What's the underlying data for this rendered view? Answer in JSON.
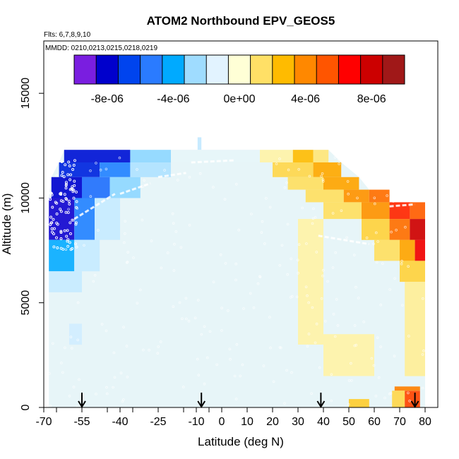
{
  "chart_data": {
    "type": "heatmap",
    "title": "ATOM2 Northbound EPV_GEOS5",
    "subtitle_flights": "Flts: 6,7,8,9,10",
    "subtitle_dates": "MMDD: 0210,0213,0215,0218,0219",
    "xlabel": "Latitude (deg N)",
    "ylabel": "Altitude (m)",
    "xlim": [
      -70,
      85
    ],
    "ylim": [
      0,
      17500
    ],
    "x_ticks": [
      {
        "value": -70,
        "label": "-70"
      },
      {
        "value": -55,
        "label": "-55"
      },
      {
        "value": -40,
        "label": "-40"
      },
      {
        "value": -25,
        "label": "-25"
      },
      {
        "value": -10,
        "label": "-10"
      },
      {
        "value": 0,
        "label": "0"
      },
      {
        "value": 10,
        "label": "10"
      },
      {
        "value": 20,
        "label": "20"
      },
      {
        "value": 30,
        "label": "30"
      },
      {
        "value": 40,
        "label": "40"
      },
      {
        "value": 50,
        "label": "50"
      },
      {
        "value": 60,
        "label": "60"
      },
      {
        "value": 70,
        "label": "70"
      },
      {
        "value": 80,
        "label": "80"
      }
    ],
    "y_ticks": [
      {
        "value": 0,
        "label": "0"
      },
      {
        "value": 5000,
        "label": "5000"
      },
      {
        "value": 10000,
        "label": "10000"
      },
      {
        "value": 15000,
        "label": "15000"
      }
    ],
    "colorbar": {
      "min": -1e-05,
      "max": 1e-05,
      "colors": [
        "#7a1ee0",
        "#0000cc",
        "#0044ee",
        "#2a7bff",
        "#00aaff",
        "#9fdcff",
        "#e2f3ff",
        "#ffffd6",
        "#ffe066",
        "#ffbb00",
        "#ff8800",
        "#ff5500",
        "#ff0000",
        "#cc0000",
        "#a01818"
      ],
      "ticks": [
        {
          "value": -8e-06,
          "label": "-8e-06"
        },
        {
          "value": -4e-06,
          "label": "-4e-06"
        },
        {
          "value": 0,
          "label": "0e+00"
        },
        {
          "value": 4e-06,
          "label": "4e-06"
        },
        {
          "value": 8e-06,
          "label": "8e-06"
        }
      ]
    },
    "arrow_latitudes": [
      -55,
      -8,
      39,
      76
    ],
    "field_cells": [
      {
        "lat": [
          -62,
          -36
        ],
        "alt": [
          11700,
          12300
        ],
        "value": -8.2e-06
      },
      {
        "lat": [
          -36,
          -20
        ],
        "alt": [
          11700,
          12300
        ],
        "value": -3e-06
      },
      {
        "lat": [
          -64,
          -48
        ],
        "alt": [
          11000,
          11700
        ],
        "value": -7.8e-06
      },
      {
        "lat": [
          -48,
          -36
        ],
        "alt": [
          11000,
          11700
        ],
        "value": -5.5e-06
      },
      {
        "lat": [
          -36,
          -20
        ],
        "alt": [
          11000,
          11700
        ],
        "value": -2.5e-06
      },
      {
        "lat": [
          -67,
          -55
        ],
        "alt": [
          10000,
          11000
        ],
        "value": -8.5e-06
      },
      {
        "lat": [
          -55,
          -44
        ],
        "alt": [
          10000,
          11000
        ],
        "value": -6e-06
      },
      {
        "lat": [
          -44,
          -32
        ],
        "alt": [
          10000,
          11000
        ],
        "value": -3e-06
      },
      {
        "lat": [
          -68,
          -58
        ],
        "alt": [
          8000,
          10000
        ],
        "value": -8.8e-06
      },
      {
        "lat": [
          -58,
          -50
        ],
        "alt": [
          8000,
          10000
        ],
        "value": -5.5e-06
      },
      {
        "lat": [
          -50,
          -40
        ],
        "alt": [
          8000,
          10000
        ],
        "value": -2e-06
      },
      {
        "lat": [
          -68,
          -58
        ],
        "alt": [
          6500,
          8000
        ],
        "value": -4.2e-06
      },
      {
        "lat": [
          -58,
          -48
        ],
        "alt": [
          6500,
          8000
        ],
        "value": -2e-06
      },
      {
        "lat": [
          -68,
          -55
        ],
        "alt": [
          5500,
          6500
        ],
        "value": -2e-06
      },
      {
        "lat": [
          -60,
          -55
        ],
        "alt": [
          3000,
          4000
        ],
        "value": -1.8e-06
      },
      {
        "lat": [
          -20,
          15
        ],
        "alt": [
          11700,
          12300
        ],
        "value": -1.2e-06
      },
      {
        "lat": [
          15,
          28
        ],
        "alt": [
          11700,
          12300
        ],
        "value": 6e-07
      },
      {
        "lat": [
          28,
          36
        ],
        "alt": [
          11700,
          12300
        ],
        "value": 2.8e-06
      },
      {
        "lat": [
          36,
          42
        ],
        "alt": [
          11700,
          12300
        ],
        "value": 1.2e-06
      },
      {
        "lat": [
          20,
          36
        ],
        "alt": [
          11000,
          11700
        ],
        "value": 1.8e-06
      },
      {
        "lat": [
          36,
          47
        ],
        "alt": [
          11000,
          11700
        ],
        "value": 3.4e-06
      },
      {
        "lat": [
          26,
          40
        ],
        "alt": [
          10400,
          11000
        ],
        "value": 1.5e-06
      },
      {
        "lat": [
          40,
          54
        ],
        "alt": [
          10400,
          11000
        ],
        "value": 3.5e-06
      },
      {
        "lat": [
          33,
          48
        ],
        "alt": [
          9800,
          10400
        ],
        "value": 1.5e-06
      },
      {
        "lat": [
          48,
          58
        ],
        "alt": [
          9800,
          10400
        ],
        "value": 4e-06
      },
      {
        "lat": [
          58,
          66
        ],
        "alt": [
          9800,
          10400
        ],
        "value": 5e-06
      },
      {
        "lat": [
          40,
          55
        ],
        "alt": [
          9000,
          9800
        ],
        "value": 1.5e-06
      },
      {
        "lat": [
          55,
          66
        ],
        "alt": [
          9000,
          9800
        ],
        "value": 4e-06
      },
      {
        "lat": [
          66,
          74
        ],
        "alt": [
          9000,
          9800
        ],
        "value": 6.5e-06
      },
      {
        "lat": [
          74,
          80
        ],
        "alt": [
          9000,
          9800
        ],
        "value": 5.5e-06
      },
      {
        "lat": [
          55,
          66
        ],
        "alt": [
          8000,
          9000
        ],
        "value": 2e-06
      },
      {
        "lat": [
          66,
          74
        ],
        "alt": [
          8000,
          9000
        ],
        "value": 5e-06
      },
      {
        "lat": [
          74,
          80
        ],
        "alt": [
          8000,
          9000
        ],
        "value": 8.5e-06
      },
      {
        "lat": [
          60,
          70
        ],
        "alt": [
          7000,
          8000
        ],
        "value": 1.5e-06
      },
      {
        "lat": [
          70,
          76
        ],
        "alt": [
          7000,
          8000
        ],
        "value": 3.5e-06
      },
      {
        "lat": [
          76,
          80
        ],
        "alt": [
          7000,
          8000
        ],
        "value": 7.5e-06
      },
      {
        "lat": [
          70,
          80
        ],
        "alt": [
          6000,
          7000
        ],
        "value": 2e-06
      },
      {
        "lat": [
          30,
          40
        ],
        "alt": [
          3000,
          9000
        ],
        "value": 6e-07
      },
      {
        "lat": [
          72,
          80
        ],
        "alt": [
          1500,
          6000
        ],
        "value": 8e-07
      },
      {
        "lat": [
          40,
          60
        ],
        "alt": [
          1500,
          3500
        ],
        "value": 6e-07
      },
      {
        "lat": [
          50,
          58
        ],
        "alt": [
          0,
          400
        ],
        "value": 2.2e-06
      },
      {
        "lat": [
          67,
          72
        ],
        "alt": [
          0,
          800
        ],
        "value": 1.8e-06
      },
      {
        "lat": [
          72,
          78
        ],
        "alt": [
          0,
          800
        ],
        "value": 6e-06
      },
      {
        "lat": [
          68,
          78
        ],
        "alt": [
          800,
          1000
        ],
        "value": 4.5e-06
      }
    ]
  }
}
